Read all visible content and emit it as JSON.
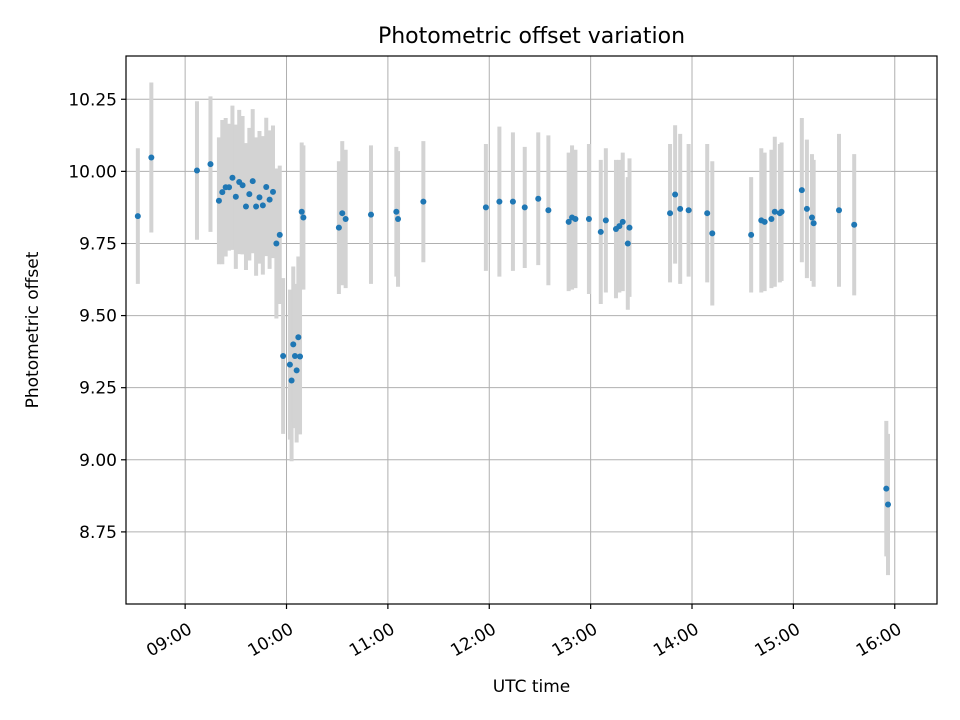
{
  "chart_data": {
    "type": "scatter",
    "title": "Photometric offset variation",
    "xlabel": "UTC time",
    "ylabel": "Photometric offset",
    "grid": true,
    "xlim": [
      "08:25",
      "16:25"
    ],
    "ylim": [
      8.5,
      10.4
    ],
    "x_ticks": [
      "09:00",
      "10:00",
      "11:00",
      "12:00",
      "13:00",
      "14:00",
      "15:00",
      "16:00"
    ],
    "y_ticks": [
      8.75,
      9.0,
      9.25,
      9.5,
      9.75,
      10.0,
      10.25
    ],
    "y_tick_labels": [
      "8.75",
      "9.00",
      "9.25",
      "9.50",
      "9.75",
      "10.00",
      "10.25"
    ],
    "series": [
      {
        "name": "offset",
        "color": "#1f77b4",
        "errorbar_color": "#d3d3d3",
        "x": [
          "08:32",
          "08:40",
          "09:07",
          "09:15",
          "09:20",
          "09:22",
          "09:24",
          "09:26",
          "09:28",
          "09:30",
          "09:32",
          "09:34",
          "09:36",
          "09:38",
          "09:40",
          "09:42",
          "09:44",
          "09:46",
          "09:48",
          "09:50",
          "09:52",
          "09:54",
          "09:56",
          "09:58",
          "10:02",
          "10:03",
          "10:04",
          "10:05",
          "10:06",
          "10:07",
          "10:08",
          "10:09",
          "10:10",
          "10:31",
          "10:33",
          "10:35",
          "10:50",
          "11:05",
          "11:06",
          "11:21",
          "11:58",
          "12:06",
          "12:14",
          "12:21",
          "12:29",
          "12:35",
          "12:47",
          "12:49",
          "12:51",
          "12:59",
          "13:06",
          "13:09",
          "13:15",
          "13:17",
          "13:19",
          "13:22",
          "13:23",
          "13:47",
          "13:50",
          "13:53",
          "13:58",
          "14:09",
          "14:12",
          "14:35",
          "14:41",
          "14:43",
          "14:47",
          "14:49",
          "14:52",
          "14:53",
          "15:05",
          "15:08",
          "15:11",
          "15:12",
          "15:27",
          "15:36",
          "15:55",
          "15:56"
        ],
        "y": [
          9.845,
          10.048,
          10.003,
          10.025,
          9.898,
          9.928,
          9.945,
          9.945,
          9.978,
          9.912,
          9.963,
          9.952,
          9.878,
          9.921,
          9.966,
          9.878,
          9.91,
          9.882,
          9.946,
          9.902,
          9.929,
          9.75,
          9.78,
          9.36,
          9.33,
          9.275,
          9.4,
          9.36,
          9.31,
          9.425,
          9.358,
          9.86,
          9.84,
          9.805,
          9.855,
          9.835,
          9.85,
          9.86,
          9.835,
          9.895,
          9.875,
          9.895,
          9.895,
          9.875,
          9.905,
          9.865,
          9.825,
          9.84,
          9.835,
          9.835,
          9.79,
          9.83,
          9.8,
          9.81,
          9.825,
          9.75,
          9.805,
          9.855,
          9.92,
          9.87,
          9.865,
          9.855,
          9.785,
          9.78,
          9.83,
          9.825,
          9.835,
          9.86,
          9.855,
          9.86,
          9.935,
          9.87,
          9.84,
          9.82,
          9.865,
          9.815,
          8.9,
          8.845
        ],
        "yerr": [
          0.235,
          0.26,
          0.24,
          0.235,
          0.22,
          0.25,
          0.24,
          0.22,
          0.25,
          0.25,
          0.25,
          0.24,
          0.22,
          0.23,
          0.25,
          0.24,
          0.23,
          0.24,
          0.24,
          0.24,
          0.23,
          0.26,
          0.24,
          0.27,
          0.26,
          0.28,
          0.27,
          0.25,
          0.25,
          0.28,
          0.27,
          0.24,
          0.25,
          0.23,
          0.25,
          0.24,
          0.24,
          0.225,
          0.235,
          0.21,
          0.22,
          0.26,
          0.24,
          0.21,
          0.23,
          0.26,
          0.24,
          0.25,
          0.24,
          0.26,
          0.25,
          0.25,
          0.24,
          0.23,
          0.24,
          0.23,
          0.24,
          0.24,
          0.24,
          0.26,
          0.23,
          0.24,
          0.25,
          0.2,
          0.25,
          0.24,
          0.24,
          0.26,
          0.24,
          0.24,
          0.25,
          0.24,
          0.22,
          0.22,
          0.265,
          0.245,
          0.235,
          0.245
        ]
      }
    ]
  }
}
